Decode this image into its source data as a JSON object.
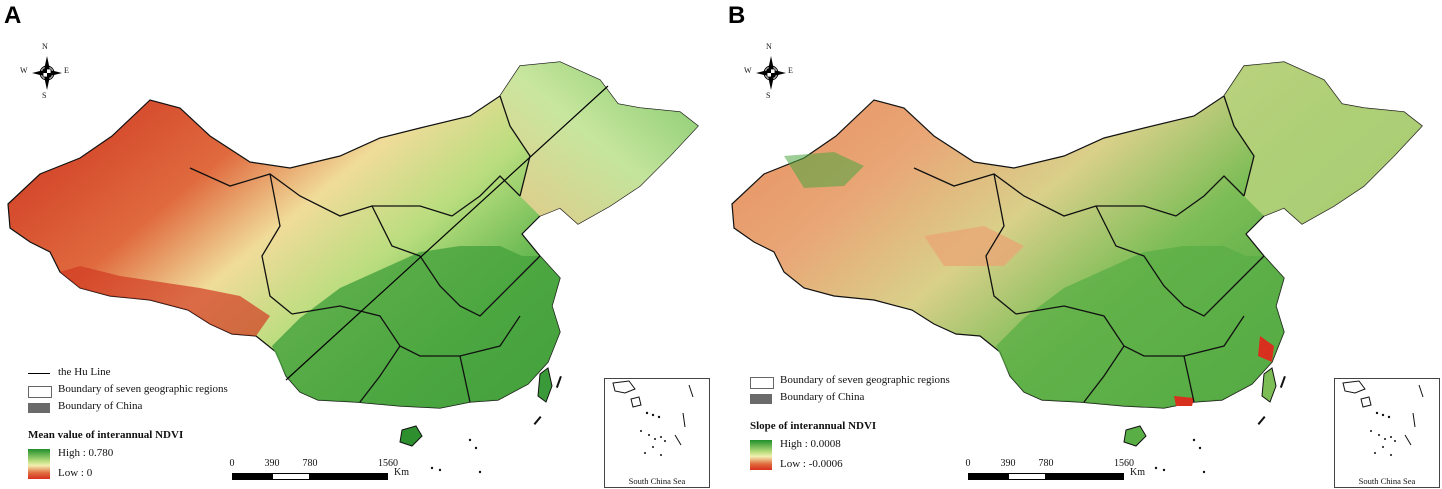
{
  "panels": [
    {
      "letter": "A",
      "compass": {
        "n": "N",
        "s": "S",
        "e": "E",
        "w": "W"
      },
      "legend": {
        "hu_line": "the Hu Line",
        "regions": "Boundary of seven geographic regions",
        "china": "Boundary of China",
        "title": "Mean value of interannual NDVI",
        "high": "High : 0.780",
        "low": "Low : 0"
      },
      "scale": {
        "t0": "0",
        "t1": "390",
        "t2": "780",
        "t3": "1560",
        "unit": "Km"
      },
      "inset_caption": "South China Sea",
      "colors": {
        "high": "#1f8f2a",
        "mid": "#f3efb0",
        "low": "#d7301f"
      }
    },
    {
      "letter": "B",
      "compass": {
        "n": "N",
        "s": "S",
        "e": "E",
        "w": "W"
      },
      "legend": {
        "regions": "Boundary of seven geographic regions",
        "china": "Boundary of China",
        "title": "Slope of interannual NDVI",
        "high": "High : 0.0008",
        "low": "Low : -0.0006"
      },
      "scale": {
        "t0": "0",
        "t1": "390",
        "t2": "780",
        "t3": "1560",
        "unit": "Km"
      },
      "inset_caption": "South China Sea",
      "colors": {
        "high": "#1f8f2a",
        "mid": "#f3efb0",
        "low": "#d7301f"
      }
    }
  ]
}
